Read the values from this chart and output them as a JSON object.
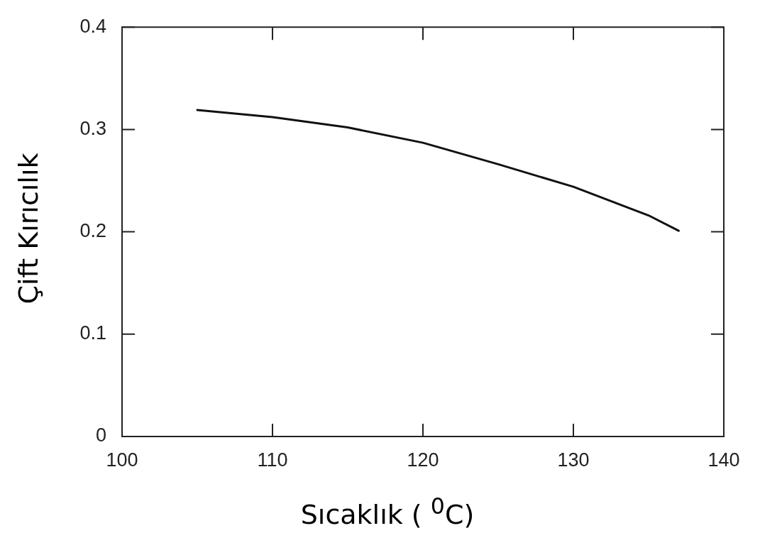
{
  "chart_data": {
    "type": "line",
    "xlabel": "Sıcaklık ( $^{0}$C)",
    "ylabel": "Çift Kırıcılık",
    "x": [
      105,
      110,
      115,
      120,
      125,
      130,
      135,
      137
    ],
    "series": [
      {
        "color": "#111111",
        "values": [
          0.319,
          0.312,
          0.302,
          0.287,
          0.266,
          0.244,
          0.216,
          0.201
        ]
      }
    ],
    "xlim": [
      100,
      140
    ],
    "xticks": [
      100,
      110,
      120,
      130,
      140
    ],
    "ylim": [
      0,
      0.4
    ],
    "yticks": [
      0,
      0.1,
      0.2,
      0.3,
      0.4
    ],
    "grid": false,
    "legend": false,
    "marker": "none",
    "line_style": "solid"
  }
}
